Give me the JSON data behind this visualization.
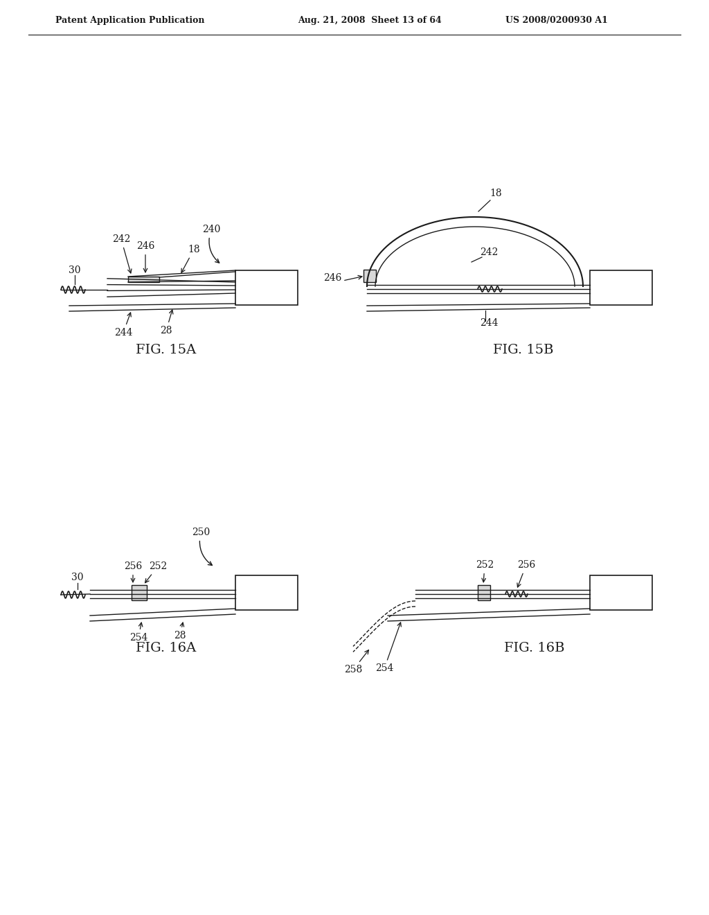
{
  "bg_color": "#ffffff",
  "header_left": "Patent Application Publication",
  "header_center": "Aug. 21, 2008  Sheet 13 of 64",
  "header_right": "US 2008/0200930 A1",
  "line_color": "#1a1a1a",
  "text_color": "#1a1a1a",
  "fig_label_fontsize": 14,
  "ref_fontsize": 10,
  "header_fontsize": 9
}
